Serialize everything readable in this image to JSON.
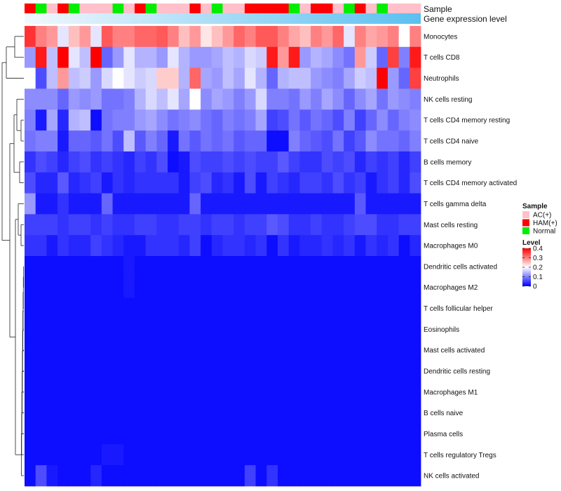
{
  "chart_data": {
    "type": "heatmap",
    "title": "",
    "annotations": {
      "sample_label": "Sample",
      "level_label": "Gene expression level"
    },
    "row_labels": [
      "Monocytes",
      "T cells CD8",
      "Neutrophils",
      "NK cells resting",
      "T cells CD4 memory resting",
      "T cells CD4 naive",
      "B cells memory",
      "T cells CD4 memory activated",
      "T cells gamma delta",
      "Mast cells resting",
      "Macrophages M0",
      "Dendritic cells activated",
      "Macrophages M2",
      "T cells follicular helper",
      "Eosinophils",
      "Mast cells activated",
      "Dendritic cells resting",
      "Macrophages M1",
      "B cells naive",
      "Plasma cells",
      "T cells regulatory  Tregs",
      "NK cells activated"
    ],
    "sample_groups": [
      "HAM(+)",
      "Normal",
      "AC(+)",
      "HAM(+)",
      "Normal",
      "AC(+)",
      "AC(+)",
      "AC(+)",
      "Normal",
      "AC(+)",
      "HAM(+)",
      "Normal",
      "AC(+)",
      "AC(+)",
      "AC(+)",
      "HAM(+)",
      "AC(+)",
      "Normal",
      "AC(+)",
      "AC(+)",
      "HAM(+)",
      "HAM(+)",
      "HAM(+)",
      "HAM(+)",
      "Normal",
      "AC(+)",
      "HAM(+)",
      "HAM(+)",
      "AC(+)",
      "Normal",
      "HAM(+)",
      "AC(+)",
      "Normal",
      "AC(+)",
      "AC(+)",
      "AC(+)"
    ],
    "values": [
      [
        0.36,
        0.3,
        0.28,
        0.18,
        0.25,
        0.28,
        0.18,
        0.33,
        0.3,
        0.3,
        0.32,
        0.32,
        0.33,
        0.3,
        0.25,
        0.28,
        0.22,
        0.25,
        0.28,
        0.32,
        0.3,
        0.33,
        0.33,
        0.3,
        0.27,
        0.25,
        0.3,
        0.28,
        0.32,
        0.18,
        0.3,
        0.27,
        0.28,
        0.3,
        0.2,
        0.3
      ],
      [
        0.12,
        0.38,
        0.15,
        0.4,
        0.18,
        0.15,
        0.4,
        0.08,
        0.12,
        0.18,
        0.14,
        0.14,
        0.12,
        0.18,
        0.14,
        0.12,
        0.12,
        0.13,
        0.15,
        0.14,
        0.17,
        0.16,
        0.38,
        0.28,
        0.38,
        0.12,
        0.14,
        0.13,
        0.11,
        0.09,
        0.28,
        0.16,
        0.08,
        0.35,
        0.1,
        0.38
      ],
      [
        0.2,
        0.06,
        0.15,
        0.28,
        0.15,
        0.16,
        0.12,
        0.17,
        0.2,
        0.18,
        0.16,
        0.17,
        0.24,
        0.24,
        0.14,
        0.32,
        0.13,
        0.12,
        0.15,
        0.13,
        0.18,
        0.14,
        0.08,
        0.14,
        0.15,
        0.15,
        0.12,
        0.11,
        0.1,
        0.13,
        0.16,
        0.15,
        0.4,
        0.12,
        0.08,
        0.35
      ],
      [
        0.11,
        0.11,
        0.11,
        0.08,
        0.12,
        0.11,
        0.12,
        0.09,
        0.09,
        0.1,
        0.14,
        0.17,
        0.15,
        0.18,
        0.13,
        0.2,
        0.11,
        0.13,
        0.12,
        0.1,
        0.12,
        0.17,
        0.1,
        0.1,
        0.09,
        0.12,
        0.1,
        0.13,
        0.11,
        0.08,
        0.11,
        0.13,
        0.09,
        0.12,
        0.11,
        0.1
      ],
      [
        0.1,
        0.02,
        0.13,
        0.03,
        0.14,
        0.15,
        0.01,
        0.09,
        0.1,
        0.1,
        0.12,
        0.13,
        0.11,
        0.09,
        0.1,
        0.11,
        0.09,
        0.08,
        0.1,
        0.09,
        0.1,
        0.13,
        0.05,
        0.06,
        0.09,
        0.07,
        0.09,
        0.08,
        0.06,
        0.1,
        0.05,
        0.08,
        0.11,
        0.08,
        0.1,
        0.11
      ],
      [
        0.09,
        0.1,
        0.1,
        0.02,
        0.08,
        0.08,
        0.07,
        0.09,
        0.06,
        0.15,
        0.07,
        0.1,
        0.08,
        0.02,
        0.09,
        0.07,
        0.09,
        0.08,
        0.09,
        0.07,
        0.08,
        0.08,
        0.01,
        0.01,
        0.1,
        0.08,
        0.07,
        0.06,
        0.09,
        0.05,
        0.07,
        0.11,
        0.09,
        0.09,
        0.08,
        0.1
      ],
      [
        0.04,
        0.06,
        0.05,
        0.03,
        0.05,
        0.06,
        0.04,
        0.05,
        0.04,
        0.03,
        0.05,
        0.04,
        0.06,
        0.01,
        0.02,
        0.06,
        0.05,
        0.05,
        0.06,
        0.05,
        0.06,
        0.05,
        0.05,
        0.07,
        0.05,
        0.04,
        0.04,
        0.06,
        0.05,
        0.06,
        0.03,
        0.05,
        0.04,
        0.05,
        0.03,
        0.05
      ],
      [
        0.06,
        0.03,
        0.03,
        0.07,
        0.03,
        0.04,
        0.05,
        0.02,
        0.04,
        0.03,
        0.04,
        0.04,
        0.04,
        0.04,
        0.02,
        0.05,
        0.06,
        0.03,
        0.04,
        0.02,
        0.06,
        0.02,
        0.05,
        0.04,
        0.03,
        0.05,
        0.05,
        0.04,
        0.06,
        0.04,
        0.05,
        0.02,
        0.04,
        0.05,
        0.03,
        0.06
      ],
      [
        0.12,
        0.02,
        0.02,
        0.04,
        0.02,
        0.02,
        0.02,
        0.08,
        0.02,
        0.02,
        0.02,
        0.02,
        0.02,
        0.02,
        0.02,
        0.08,
        0.02,
        0.02,
        0.02,
        0.02,
        0.02,
        0.02,
        0.02,
        0.02,
        0.02,
        0.02,
        0.02,
        0.02,
        0.02,
        0.02,
        0.07,
        0.02,
        0.02,
        0.02,
        0.02,
        0.02
      ],
      [
        0.05,
        0.05,
        0.05,
        0.04,
        0.05,
        0.05,
        0.04,
        0.05,
        0.04,
        0.04,
        0.05,
        0.05,
        0.04,
        0.04,
        0.05,
        0.05,
        0.04,
        0.05,
        0.05,
        0.04,
        0.05,
        0.05,
        0.07,
        0.06,
        0.04,
        0.04,
        0.05,
        0.04,
        0.04,
        0.05,
        0.06,
        0.06,
        0.04,
        0.04,
        0.05,
        0.05
      ],
      [
        0.04,
        0.04,
        0.02,
        0.04,
        0.03,
        0.03,
        0.05,
        0.04,
        0.03,
        0.02,
        0.02,
        0.04,
        0.04,
        0.04,
        0.03,
        0.05,
        0.01,
        0.03,
        0.04,
        0.04,
        0.03,
        0.04,
        0.01,
        0.04,
        0.02,
        0.03,
        0.03,
        0.04,
        0.03,
        0.04,
        0.02,
        0.04,
        0.03,
        0.04,
        0.01,
        0.03
      ],
      [
        0.01,
        0.01,
        0.01,
        0.01,
        0.01,
        0.01,
        0.01,
        0.01,
        0.01,
        0.02,
        0.01,
        0.01,
        0.01,
        0.01,
        0.01,
        0.01,
        0.01,
        0.01,
        0.01,
        0.01,
        0.01,
        0.01,
        0.01,
        0.01,
        0.01,
        0.01,
        0.01,
        0.01,
        0.01,
        0.01,
        0.01,
        0.01,
        0.01,
        0.01,
        0.01,
        0.01
      ],
      [
        0.01,
        0.01,
        0.01,
        0.01,
        0.01,
        0.01,
        0.01,
        0.01,
        0.01,
        0.02,
        0.01,
        0.01,
        0.01,
        0.01,
        0.01,
        0.01,
        0.01,
        0.01,
        0.01,
        0.01,
        0.01,
        0.01,
        0.01,
        0.01,
        0.01,
        0.01,
        0.01,
        0.01,
        0.01,
        0.01,
        0.01,
        0.01,
        0.01,
        0.01,
        0.01,
        0.01
      ],
      [
        0.01,
        0.01,
        0.01,
        0.01,
        0.01,
        0.01,
        0.01,
        0.01,
        0.01,
        0.01,
        0.01,
        0.01,
        0.01,
        0.01,
        0.01,
        0.01,
        0.01,
        0.01,
        0.01,
        0.01,
        0.01,
        0.01,
        0.01,
        0.01,
        0.01,
        0.01,
        0.01,
        0.01,
        0.01,
        0.01,
        0.01,
        0.01,
        0.01,
        0.01,
        0.01,
        0.01
      ],
      [
        0.01,
        0.01,
        0.01,
        0.01,
        0.01,
        0.01,
        0.01,
        0.01,
        0.01,
        0.01,
        0.01,
        0.01,
        0.01,
        0.01,
        0.01,
        0.01,
        0.01,
        0.01,
        0.01,
        0.01,
        0.01,
        0.01,
        0.01,
        0.01,
        0.01,
        0.01,
        0.01,
        0.01,
        0.01,
        0.01,
        0.01,
        0.01,
        0.01,
        0.01,
        0.01,
        0.01
      ],
      [
        0.01,
        0.01,
        0.01,
        0.01,
        0.01,
        0.01,
        0.01,
        0.01,
        0.01,
        0.01,
        0.01,
        0.01,
        0.01,
        0.01,
        0.01,
        0.01,
        0.01,
        0.01,
        0.01,
        0.01,
        0.01,
        0.01,
        0.01,
        0.01,
        0.01,
        0.01,
        0.01,
        0.01,
        0.01,
        0.01,
        0.01,
        0.01,
        0.01,
        0.01,
        0.01,
        0.01
      ],
      [
        0.01,
        0.01,
        0.01,
        0.01,
        0.01,
        0.01,
        0.01,
        0.01,
        0.01,
        0.01,
        0.01,
        0.01,
        0.01,
        0.01,
        0.01,
        0.01,
        0.01,
        0.01,
        0.01,
        0.01,
        0.01,
        0.01,
        0.01,
        0.01,
        0.01,
        0.01,
        0.01,
        0.01,
        0.01,
        0.01,
        0.01,
        0.01,
        0.01,
        0.01,
        0.01,
        0.01
      ],
      [
        0.01,
        0.01,
        0.01,
        0.01,
        0.01,
        0.01,
        0.01,
        0.01,
        0.01,
        0.01,
        0.01,
        0.01,
        0.01,
        0.01,
        0.01,
        0.01,
        0.01,
        0.01,
        0.01,
        0.01,
        0.01,
        0.01,
        0.01,
        0.01,
        0.01,
        0.01,
        0.01,
        0.01,
        0.01,
        0.01,
        0.01,
        0.01,
        0.01,
        0.01,
        0.01,
        0.01
      ],
      [
        0.01,
        0.01,
        0.01,
        0.01,
        0.01,
        0.01,
        0.01,
        0.01,
        0.01,
        0.01,
        0.01,
        0.01,
        0.01,
        0.01,
        0.01,
        0.01,
        0.01,
        0.01,
        0.01,
        0.01,
        0.01,
        0.01,
        0.01,
        0.01,
        0.01,
        0.01,
        0.01,
        0.01,
        0.01,
        0.01,
        0.01,
        0.01,
        0.01,
        0.01,
        0.01,
        0.01
      ],
      [
        0.01,
        0.01,
        0.01,
        0.01,
        0.01,
        0.01,
        0.01,
        0.01,
        0.01,
        0.01,
        0.01,
        0.01,
        0.01,
        0.01,
        0.01,
        0.01,
        0.01,
        0.01,
        0.01,
        0.01,
        0.01,
        0.01,
        0.01,
        0.01,
        0.01,
        0.01,
        0.01,
        0.01,
        0.01,
        0.01,
        0.01,
        0.01,
        0.01,
        0.01,
        0.01,
        0.01
      ],
      [
        0.01,
        0.01,
        0.01,
        0.01,
        0.01,
        0.01,
        0.01,
        0.02,
        0.02,
        0.01,
        0.01,
        0.01,
        0.01,
        0.01,
        0.01,
        0.01,
        0.01,
        0.01,
        0.01,
        0.01,
        0.01,
        0.01,
        0.01,
        0.01,
        0.01,
        0.01,
        0.01,
        0.01,
        0.01,
        0.01,
        0.01,
        0.01,
        0.01,
        0.01,
        0.01,
        0.01
      ],
      [
        0.01,
        0.06,
        0.02,
        0.01,
        0.01,
        0.01,
        0.03,
        0.01,
        0.01,
        0.01,
        0.01,
        0.01,
        0.01,
        0.01,
        0.01,
        0.01,
        0.01,
        0.01,
        0.01,
        0.01,
        0.05,
        0.01,
        0.04,
        0.01,
        0.01,
        0.01,
        0.01,
        0.01,
        0.01,
        0.01,
        0.01,
        0.01,
        0.01,
        0.01,
        0.01,
        0.01
      ]
    ],
    "color_scale": {
      "min": 0,
      "mid": 0.2,
      "max": 0.4,
      "low": "#0000ff",
      "mid_color": "#ffffff",
      "high": "#ff0000"
    },
    "legend": {
      "position": "right",
      "sample_title": "Sample",
      "groups": [
        {
          "name": "AC(+)",
          "color": "#ffc0cb"
        },
        {
          "name": "HAM(+)",
          "color": "#ff0000"
        },
        {
          "name": "Normal",
          "color": "#00ee00"
        }
      ],
      "level_title": "Level",
      "level_ticks": [
        "0.4",
        "0.3",
        "0.2",
        "0.1",
        "0"
      ],
      "level_tick_values": [
        0.4,
        0.3,
        0.2,
        0.1,
        0
      ]
    },
    "level_annotation_color": "#5bc0f0"
  }
}
